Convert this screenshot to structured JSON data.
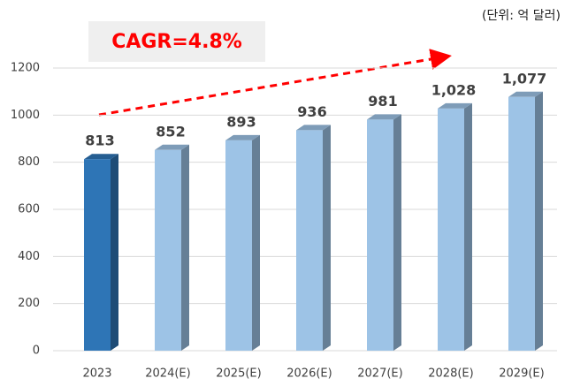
{
  "chart_data": {
    "type": "bar3d",
    "categories": [
      "2023",
      "2024(E)",
      "2025(E)",
      "2026(E)",
      "2027(E)",
      "2028(E)",
      "2029(E)"
    ],
    "values": [
      813,
      852,
      893,
      936,
      981,
      1028,
      1077
    ],
    "value_labels": [
      "813",
      "852",
      "893",
      "936",
      "981",
      "1,028",
      "1,077"
    ],
    "colors": [
      "#2e75b6",
      "#9dc3e6",
      "#9dc3e6",
      "#9dc3e6",
      "#9dc3e6",
      "#9dc3e6",
      "#9dc3e6"
    ],
    "ylim": [
      0,
      1200
    ],
    "yticks": [
      0,
      200,
      400,
      600,
      800,
      1000,
      1200
    ],
    "grid": true,
    "annotations": [
      "CAGR=4.8%",
      "(단위: 억 달러)"
    ]
  }
}
